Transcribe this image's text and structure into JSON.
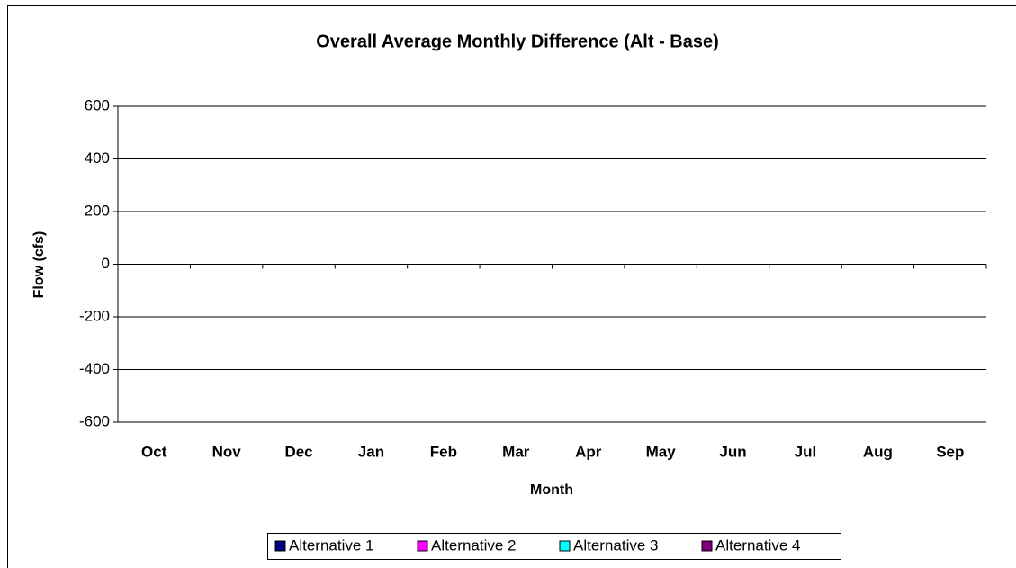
{
  "chart_data": {
    "type": "bar",
    "title": "Overall Average Monthly Difference (Alt - Base)",
    "x_label": "Month",
    "y_label": "Flow (cfs)",
    "categories": [
      "Oct",
      "Nov",
      "Dec",
      "Jan",
      "Feb",
      "Mar",
      "Apr",
      "May",
      "Jun",
      "Jul",
      "Aug",
      "Sep"
    ],
    "series": [
      {
        "name": "Alternative 1",
        "color": "#000080",
        "values": [
          0,
          0,
          0,
          0,
          0,
          0,
          0,
          0,
          0,
          0,
          0,
          0
        ]
      },
      {
        "name": "Alternative 2",
        "color": "#ff00ff",
        "values": [
          0,
          0,
          0,
          0,
          0,
          0,
          0,
          0,
          0,
          0,
          0,
          0
        ]
      },
      {
        "name": "Alternative 3",
        "color": "#00ffff",
        "values": [
          0,
          0,
          0,
          0,
          0,
          0,
          0,
          0,
          0,
          0,
          0,
          0
        ]
      },
      {
        "name": "Alternative 4",
        "color": "#800080",
        "values": [
          0,
          0,
          0,
          0,
          0,
          0,
          0,
          0,
          0,
          0,
          0,
          0
        ]
      }
    ],
    "ylim": [
      -600,
      600
    ],
    "yticks": [
      -600,
      -400,
      -200,
      0,
      200,
      400,
      600
    ],
    "grid": true,
    "legend": "bottom"
  }
}
